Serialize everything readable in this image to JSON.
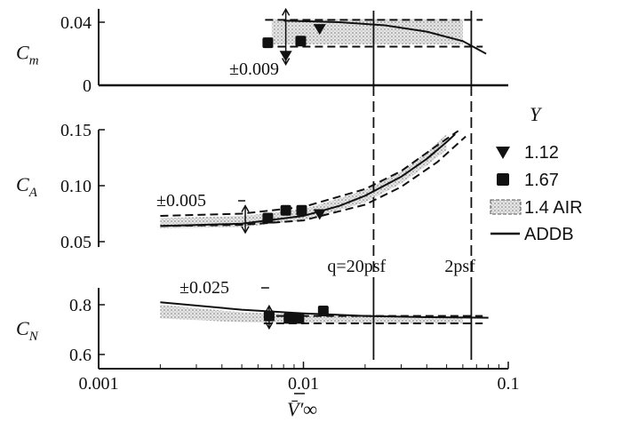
{
  "chart_data": {
    "type": "line",
    "x_scale": "log",
    "xlim": [
      0.001,
      0.1
    ],
    "x_ticks": [
      "0.001",
      "0.01",
      "0.1"
    ],
    "xlabel": "V̄′∞",
    "legend": {
      "title": "Y",
      "placement": "right",
      "entries": [
        {
          "label": "1.12",
          "marker": "inverted-triangle"
        },
        {
          "label": "1.67",
          "marker": "square"
        },
        {
          "label": "1.4 AIR",
          "marker": "shaded-band"
        },
        {
          "label": "ADDB",
          "marker": "solid-line"
        }
      ]
    },
    "vertical_markers": [
      {
        "x": 0.022,
        "label": "q=20psf"
      },
      {
        "x": 0.066,
        "label": "2psf"
      }
    ],
    "panels": [
      {
        "ylabel": "Cm",
        "ylim": [
          0,
          0.04
        ],
        "y_ticks": [
          "0",
          "0.04"
        ],
        "tolerance_label": "±0.009",
        "dashed_bounds": [
          0.0415,
          0.0245
        ],
        "band": {
          "x": [
            0.007,
            0.06
          ],
          "lower": [
            0.026,
            0.026
          ],
          "upper": [
            0.042,
            0.042
          ]
        },
        "points_y112": [
          {
            "x": 0.012,
            "y": 0.036
          },
          {
            "x": 0.0082,
            "y": 0.019
          }
        ],
        "points_y167": [
          {
            "x": 0.0067,
            "y": 0.027
          },
          {
            "x": 0.0097,
            "y": 0.028
          }
        ],
        "addb": {
          "x": [
            0.008,
            0.015,
            0.025,
            0.04,
            0.06,
            0.078
          ],
          "y": [
            0.041,
            0.04,
            0.038,
            0.034,
            0.028,
            0.02
          ]
        }
      },
      {
        "ylabel": "CA",
        "ylim": [
          0.05,
          0.15
        ],
        "y_ticks": [
          "0.05",
          "0.10",
          "0.15"
        ],
        "tolerance_label": "±0.005",
        "band": {
          "x": [
            0.002,
            0.005,
            0.01,
            0.02,
            0.03,
            0.04,
            0.05
          ],
          "lower": [
            0.062,
            0.063,
            0.069,
            0.085,
            0.102,
            0.118,
            0.132
          ],
          "upper": [
            0.071,
            0.073,
            0.079,
            0.096,
            0.113,
            0.13,
            0.146
          ]
        },
        "dashed_lower": {
          "x": [
            0.002,
            0.005,
            0.01,
            0.02,
            0.03,
            0.045,
            0.062
          ],
          "y": [
            0.064,
            0.065,
            0.069,
            0.083,
            0.099,
            0.121,
            0.144
          ]
        },
        "dashed_upper": {
          "x": [
            0.002,
            0.005,
            0.01,
            0.02,
            0.03,
            0.045,
            0.057
          ],
          "y": [
            0.073,
            0.075,
            0.081,
            0.097,
            0.113,
            0.136,
            0.149
          ]
        },
        "points_y112": [
          {
            "x": 0.012,
            "y": 0.075
          }
        ],
        "points_y167": [
          {
            "x": 0.0067,
            "y": 0.071
          },
          {
            "x": 0.0082,
            "y": 0.078
          },
          {
            "x": 0.0098,
            "y": 0.078
          }
        ],
        "addb": {
          "x": [
            0.002,
            0.005,
            0.01,
            0.015,
            0.02,
            0.03,
            0.04,
            0.05,
            0.055
          ],
          "y": [
            0.064,
            0.066,
            0.073,
            0.082,
            0.091,
            0.108,
            0.124,
            0.139,
            0.146
          ]
        }
      },
      {
        "ylabel": "CN",
        "ylim": [
          0.6,
          0.8
        ],
        "y_ticks": [
          "0.6",
          "0.8"
        ],
        "tolerance_label": "±0.025",
        "dashed_bounds": [
          0.755,
          0.725
        ],
        "band": {
          "x": [
            0.002,
            0.005,
            0.01,
            0.02,
            0.04,
            0.06
          ],
          "lower": [
            0.745,
            0.73,
            0.728,
            0.725,
            0.724,
            0.724
          ],
          "upper": [
            0.8,
            0.77,
            0.76,
            0.755,
            0.753,
            0.752
          ]
        },
        "points_y112": [],
        "points_y167": [
          {
            "x": 0.0068,
            "y": 0.755
          },
          {
            "x": 0.0085,
            "y": 0.745
          },
          {
            "x": 0.0095,
            "y": 0.745
          },
          {
            "x": 0.0125,
            "y": 0.775
          }
        ],
        "addb": {
          "x": [
            0.002,
            0.005,
            0.01,
            0.02,
            0.04,
            0.08
          ],
          "y": [
            0.81,
            0.78,
            0.765,
            0.755,
            0.75,
            0.748
          ]
        }
      }
    ]
  }
}
